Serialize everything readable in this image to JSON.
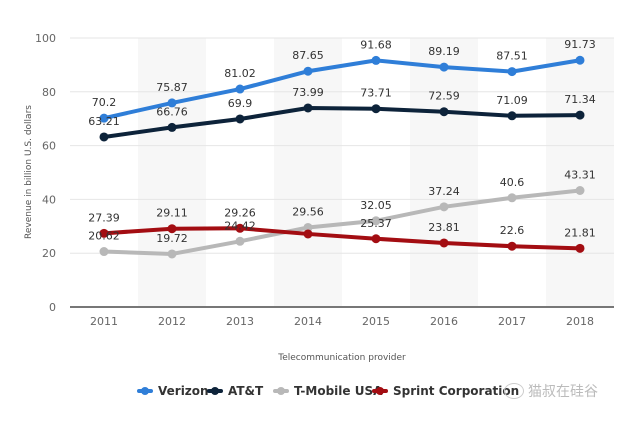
{
  "chart_data": {
    "type": "line",
    "title": "",
    "xlabel": "Telecommunication provider",
    "ylabel": "Revenue in billion U.S. dollars",
    "ylim": [
      0,
      100
    ],
    "yticks": [
      0,
      20,
      40,
      60,
      80,
      100
    ],
    "grid": true,
    "legend_position": "bottom",
    "categories": [
      "2011",
      "2012",
      "2013",
      "2014",
      "2015",
      "2016",
      "2017",
      "2018"
    ],
    "series": [
      {
        "name": "Verizon",
        "color": "#2f7ed8",
        "values": [
          70.2,
          75.87,
          81.02,
          87.65,
          91.68,
          89.19,
          87.51,
          91.73
        ]
      },
      {
        "name": "AT&T",
        "color": "#0d233a",
        "values": [
          63.21,
          66.76,
          69.9,
          73.99,
          73.71,
          72.59,
          71.09,
          71.34
        ]
      },
      {
        "name": "T-Mobile USA",
        "color": "#b8b8b8",
        "values": [
          20.62,
          19.72,
          24.42,
          29.56,
          32.05,
          37.24,
          40.6,
          43.31
        ]
      },
      {
        "name": "Sprint Corporation",
        "color": "#a30d12",
        "values": [
          27.39,
          29.11,
          29.26,
          27.16,
          25.37,
          23.81,
          22.6,
          21.81
        ]
      }
    ],
    "data_labels": {
      "Verizon": [
        "70.2",
        "75.87",
        "81.02",
        "87.65",
        "91.68",
        "89.19",
        "87.51",
        "91.73"
      ],
      "AT&T": [
        "63.21",
        "66.76",
        "69.9",
        "73.99",
        "73.71",
        "72.59",
        "71.09",
        "71.34"
      ],
      "T-Mobile USA": [
        "20.62",
        "19.72",
        "24.42",
        "29.56",
        "32.05",
        "37.24",
        "40.6",
        "43.31"
      ],
      "Sprint Corporation": [
        "27.39",
        "29.11",
        "29.26",
        "",
        "25.37",
        "23.81",
        "22.6",
        "21.81"
      ]
    }
  },
  "watermark": {
    "text": "猫叔在硅谷"
  }
}
